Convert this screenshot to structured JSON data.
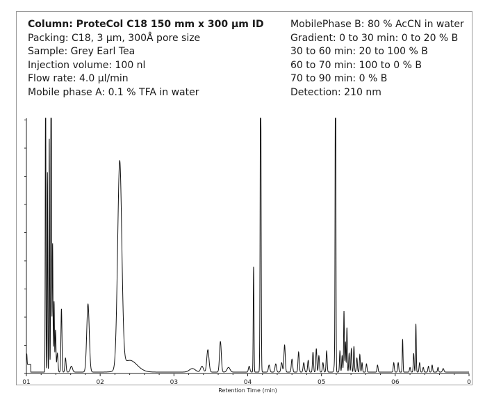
{
  "conditions": {
    "title": "Column: ProteCol C18 150 mm x 300 µm ID",
    "left_lines": [
      "Packing: C18, 3 µm, 300Å pore size",
      "Sample: Grey Earl Tea",
      "Injection volume: 100 nl",
      "Flow rate: 4.0 µl/min",
      "Mobile phase A: 0.1 % TFA in water"
    ],
    "right_lines": [
      "MobilePhase B: 80 % AcCN in water",
      "Gradient: 0 to 30 min: 0 to 20 % B",
      "30 to 60 min: 20 to 100 % B",
      "60 to 70 min: 100 to 0 % B",
      "70 to 90 min: 0 % B",
      "Detection: 210 nm"
    ]
  },
  "colors": {
    "trace": "#111111",
    "axis": "#222222",
    "frame": "#9a9a9a"
  },
  "chart_data": {
    "type": "line",
    "title": "",
    "xlabel": "Retention Time (min)",
    "ylabel": "",
    "x_tick_labels": [
      "01",
      "02",
      "03",
      "04",
      "05",
      "06",
      "0"
    ],
    "xlim": [
      0,
      6
    ],
    "ylim": [
      0,
      100
    ],
    "grid": false,
    "legend": "none",
    "series": [
      {
        "peaks": [
          {
            "x": 0.005,
            "height": 4.5,
            "width": 0.004
          },
          {
            "x": 0.26,
            "height": 140,
            "width": 0.004
          },
          {
            "x": 0.285,
            "height": 85,
            "width": 0.004
          },
          {
            "x": 0.31,
            "height": 100,
            "width": 0.004
          },
          {
            "x": 0.335,
            "height": 150,
            "width": 0.005
          },
          {
            "x": 0.355,
            "height": 55,
            "width": 0.005
          },
          {
            "x": 0.375,
            "height": 30,
            "width": 0.005
          },
          {
            "x": 0.395,
            "height": 18,
            "width": 0.006
          },
          {
            "x": 0.42,
            "height": 8,
            "width": 0.008
          },
          {
            "x": 0.475,
            "height": 27,
            "width": 0.007
          },
          {
            "x": 0.53,
            "height": 6,
            "width": 0.008
          },
          {
            "x": 0.61,
            "height": 2.5,
            "width": 0.015
          },
          {
            "x": 0.835,
            "height": 29,
            "width": 0.017
          },
          {
            "x": 1.265,
            "height": 88,
            "width": 0.028
          },
          {
            "x": 1.4,
            "height": 5,
            "width": 0.1
          },
          {
            "x": 2.25,
            "height": 1.5,
            "width": 0.04
          },
          {
            "x": 2.38,
            "height": 2.5,
            "width": 0.018
          },
          {
            "x": 2.46,
            "height": 9.5,
            "width": 0.015
          },
          {
            "x": 2.63,
            "height": 13,
            "width": 0.012
          },
          {
            "x": 2.74,
            "height": 2,
            "width": 0.02
          },
          {
            "x": 3.02,
            "height": 2.5,
            "width": 0.01
          },
          {
            "x": 3.08,
            "height": 45,
            "width": 0.005
          },
          {
            "x": 3.175,
            "height": 145,
            "width": 0.006
          },
          {
            "x": 3.29,
            "height": 3,
            "width": 0.01
          },
          {
            "x": 3.38,
            "height": 3.5,
            "width": 0.01
          },
          {
            "x": 3.46,
            "height": 4,
            "width": 0.01
          },
          {
            "x": 3.5,
            "height": 11.5,
            "width": 0.009
          },
          {
            "x": 3.6,
            "height": 5.5,
            "width": 0.009
          },
          {
            "x": 3.69,
            "height": 8.5,
            "width": 0.008
          },
          {
            "x": 3.76,
            "height": 4,
            "width": 0.009
          },
          {
            "x": 3.82,
            "height": 5,
            "width": 0.008
          },
          {
            "x": 3.885,
            "height": 8.5,
            "width": 0.007
          },
          {
            "x": 3.93,
            "height": 10,
            "width": 0.007
          },
          {
            "x": 3.965,
            "height": 7,
            "width": 0.007
          },
          {
            "x": 4.02,
            "height": 4,
            "width": 0.008
          },
          {
            "x": 4.07,
            "height": 9,
            "width": 0.007
          },
          {
            "x": 4.18,
            "height": 4,
            "width": 0.009
          },
          {
            "x": 4.19,
            "height": 150,
            "width": 0.005
          },
          {
            "x": 4.25,
            "height": 9,
            "width": 0.006
          },
          {
            "x": 4.28,
            "height": 7,
            "width": 0.006
          },
          {
            "x": 4.305,
            "height": 26,
            "width": 0.005
          },
          {
            "x": 4.325,
            "height": 13,
            "width": 0.005
          },
          {
            "x": 4.345,
            "height": 19,
            "width": 0.005
          },
          {
            "x": 4.375,
            "height": 8,
            "width": 0.006
          },
          {
            "x": 4.405,
            "height": 10,
            "width": 0.006
          },
          {
            "x": 4.44,
            "height": 11,
            "width": 0.006
          },
          {
            "x": 4.48,
            "height": 6,
            "width": 0.007
          },
          {
            "x": 4.52,
            "height": 7.5,
            "width": 0.006
          },
          {
            "x": 4.55,
            "height": 4,
            "width": 0.006
          },
          {
            "x": 4.61,
            "height": 3.5,
            "width": 0.007
          },
          {
            "x": 4.76,
            "height": 3,
            "width": 0.007
          },
          {
            "x": 4.98,
            "height": 4,
            "width": 0.007
          },
          {
            "x": 5.04,
            "height": 4,
            "width": 0.007
          },
          {
            "x": 5.1,
            "height": 14,
            "width": 0.005
          },
          {
            "x": 5.2,
            "height": 2,
            "width": 0.007
          },
          {
            "x": 5.25,
            "height": 8,
            "width": 0.006
          },
          {
            "x": 5.28,
            "height": 20.5,
            "width": 0.005
          },
          {
            "x": 5.33,
            "height": 4,
            "width": 0.007
          },
          {
            "x": 5.38,
            "height": 2,
            "width": 0.007
          },
          {
            "x": 5.45,
            "height": 2.5,
            "width": 0.007
          },
          {
            "x": 5.5,
            "height": 3,
            "width": 0.007
          },
          {
            "x": 5.58,
            "height": 2,
            "width": 0.007
          },
          {
            "x": 5.65,
            "height": 1.5,
            "width": 0.01
          }
        ]
      }
    ]
  }
}
